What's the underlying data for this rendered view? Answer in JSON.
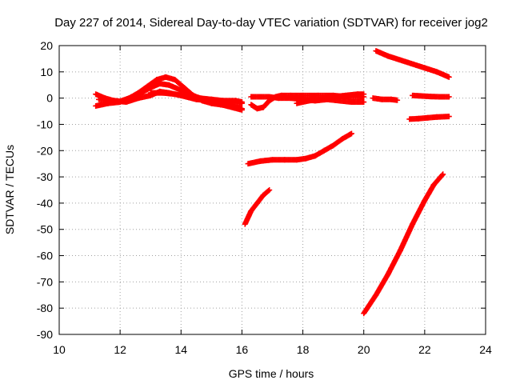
{
  "chart_data": {
    "type": "scatter",
    "title": "Day 227 of 2014, Sidereal Day-to-day VTEC variation (SDTVAR) for receiver jog2",
    "xlabel": "GPS time / hours",
    "ylabel": "SDTVAR / TECUs",
    "xlim": [
      10,
      24
    ],
    "ylim": [
      -90,
      20
    ],
    "xticks": [
      10,
      12,
      14,
      16,
      18,
      20,
      22,
      24
    ],
    "yticks": [
      20,
      10,
      0,
      -10,
      -20,
      -30,
      -40,
      -50,
      -60,
      -70,
      -80,
      -90
    ],
    "grid": true,
    "marker_color": "#ff0000",
    "series": [
      {
        "x": [
          11.2,
          11.5,
          11.8,
          12.0,
          12.3,
          12.6,
          12.9,
          13.2,
          13.5,
          13.8,
          14.1,
          14.4,
          14.7,
          15.0,
          15.3,
          15.6,
          16.0
        ],
        "y": [
          1.5,
          0.0,
          -1.0,
          -1.2,
          0.0,
          2.0,
          4.5,
          7.0,
          8.0,
          7.0,
          4.0,
          1.0,
          -1.0,
          -2.0,
          -2.5,
          -3.0,
          -4.0
        ]
      },
      {
        "x": [
          11.2,
          11.6,
          12.0,
          12.3,
          12.7,
          13.0,
          13.3,
          13.6,
          14.0,
          14.5,
          15.0,
          15.5,
          16.0
        ],
        "y": [
          -3.0,
          -2.0,
          -1.5,
          0.0,
          2.0,
          4.0,
          5.5,
          5.0,
          3.0,
          0.5,
          -1.5,
          -3.0,
          -4.5
        ]
      },
      {
        "x": [
          11.3,
          11.8,
          12.2,
          12.6,
          13.0,
          13.3,
          13.6,
          14.0,
          14.5,
          15.0,
          15.5,
          16.0
        ],
        "y": [
          -0.5,
          -1.0,
          -1.5,
          0.0,
          1.0,
          2.5,
          2.0,
          1.0,
          -0.5,
          -1.0,
          -1.5,
          -2.0
        ]
      },
      {
        "x": [
          13.0,
          13.4,
          13.8,
          14.2,
          14.6,
          15.0,
          15.4,
          15.8,
          16.0
        ],
        "y": [
          2.0,
          2.0,
          1.5,
          0.5,
          0.0,
          -0.5,
          -1.0,
          -1.0,
          -1.5
        ]
      },
      {
        "x": [
          16.3,
          16.5,
          16.7,
          16.9,
          17.1,
          17.3,
          17.6,
          18.0,
          18.5,
          19.0,
          19.5,
          20.0
        ],
        "y": [
          -2.5,
          -4.0,
          -3.5,
          -1.0,
          0.5,
          1.0,
          1.0,
          1.0,
          1.0,
          1.0,
          0.5,
          0.5
        ]
      },
      {
        "x": [
          16.3,
          16.6,
          16.9,
          17.2,
          17.6,
          18.0,
          18.4,
          18.8,
          19.2,
          19.6,
          20.0
        ],
        "y": [
          0.5,
          0.5,
          0.5,
          0.0,
          0.0,
          -0.5,
          -1.0,
          -0.5,
          -1.0,
          -1.5,
          -1.5
        ]
      },
      {
        "x": [
          17.8,
          18.2,
          18.6,
          19.0,
          19.4,
          19.8,
          20.0
        ],
        "y": [
          -2.0,
          -1.0,
          -0.5,
          0.5,
          1.0,
          1.5,
          1.5
        ]
      },
      {
        "x": [
          20.3,
          20.6,
          20.9,
          21.1
        ],
        "y": [
          0.0,
          -0.5,
          -0.5,
          -0.8
        ]
      },
      {
        "x": [
          20.4,
          20.8,
          21.2,
          21.6,
          22.0,
          22.4,
          22.8
        ],
        "y": [
          18.0,
          16.0,
          14.5,
          13.0,
          11.5,
          10.0,
          8.0
        ]
      },
      {
        "x": [
          21.6,
          21.9,
          22.2,
          22.5,
          22.8
        ],
        "y": [
          1.0,
          0.8,
          0.6,
          0.5,
          0.5
        ]
      },
      {
        "x": [
          21.5,
          21.8,
          22.1,
          22.4,
          22.8
        ],
        "y": [
          -8.0,
          -7.8,
          -7.5,
          -7.2,
          -7.0
        ]
      },
      {
        "x": [
          16.2,
          16.6,
          17.0,
          17.4,
          17.8,
          18.1,
          18.4,
          18.7,
          19.0,
          19.3,
          19.6
        ],
        "y": [
          -25.0,
          -24.0,
          -23.5,
          -23.5,
          -23.5,
          -23.0,
          -22.0,
          -20.0,
          -18.0,
          -15.5,
          -13.5
        ]
      },
      {
        "x": [
          16.1,
          16.3,
          16.5,
          16.7,
          16.9
        ],
        "y": [
          -48.0,
          -43.0,
          -40.0,
          -37.0,
          -35.0
        ]
      },
      {
        "x": [
          20.0,
          20.4,
          20.8,
          21.2,
          21.6,
          22.0,
          22.3,
          22.6
        ],
        "y": [
          -82.0,
          -75.0,
          -67.0,
          -58.0,
          -48.0,
          -39.0,
          -33.0,
          -29.0
        ]
      }
    ]
  }
}
